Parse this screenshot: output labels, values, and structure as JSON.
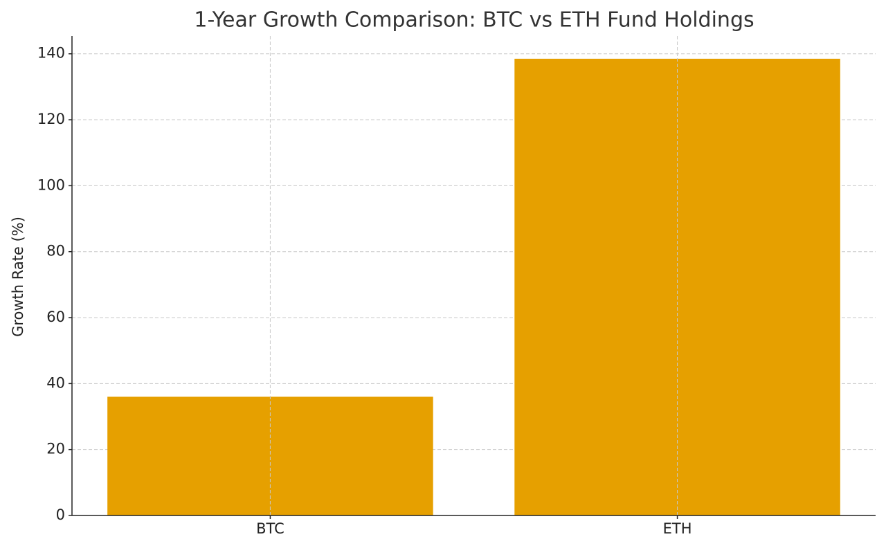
{
  "chart_data": {
    "type": "bar",
    "title": "1-Year Growth Comparison: BTC vs ETH Fund Holdings",
    "y_label": "Growth Rate (%)",
    "categories": [
      "BTC",
      "ETH"
    ],
    "values": [
      36,
      138.5
    ],
    "color": "#e6a000",
    "ylim": [
      0,
      145.4
    ],
    "yticks": [
      0,
      20,
      40,
      60,
      80,
      100,
      120,
      140
    ],
    "grid": true
  }
}
